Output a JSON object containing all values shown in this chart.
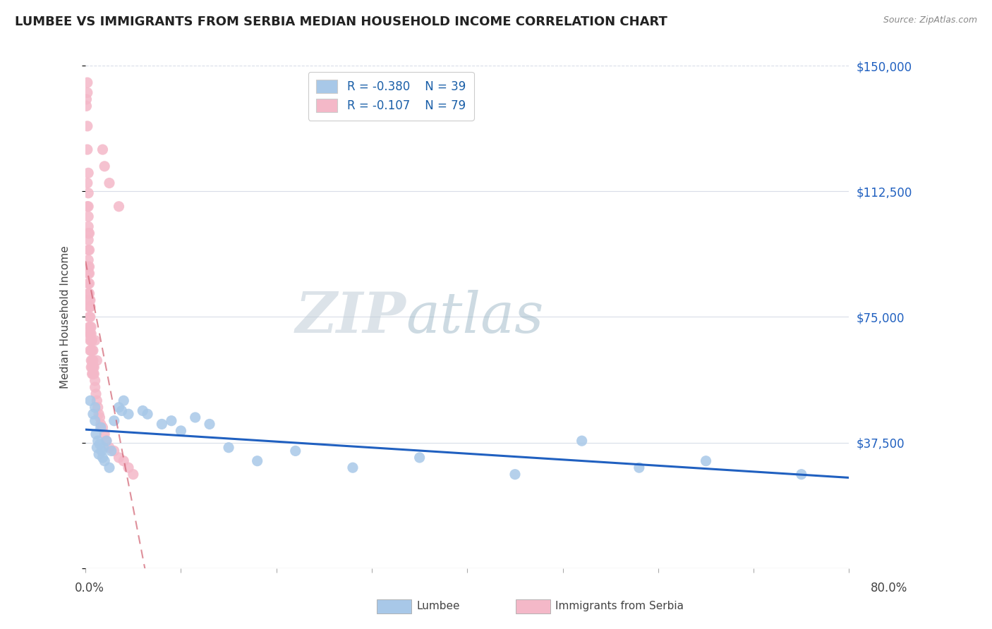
{
  "title": "LUMBEE VS IMMIGRANTS FROM SERBIA MEDIAN HOUSEHOLD INCOME CORRELATION CHART",
  "source_text": "Source: ZipAtlas.com",
  "ylabel": "Median Household Income",
  "xlim": [
    0,
    0.8
  ],
  "ylim": [
    0,
    150000
  ],
  "yticks": [
    0,
    37500,
    75000,
    112500,
    150000
  ],
  "ytick_labels_right": [
    "",
    "$37,500",
    "$75,000",
    "$112,500",
    "$150,000"
  ],
  "xticks": [
    0.0,
    0.1,
    0.2,
    0.3,
    0.4,
    0.5,
    0.6,
    0.7,
    0.8
  ],
  "xtick_labels": [
    "0.0%",
    "",
    "",
    "",
    "",
    "",
    "",
    "",
    "80.0%"
  ],
  "legend_labels": [
    "Lumbee",
    "Immigrants from Serbia"
  ],
  "legend_R": [
    "-0.380",
    "-0.107"
  ],
  "legend_N": [
    "39",
    "79"
  ],
  "watermark_zip": "ZIP",
  "watermark_atlas": "atlas",
  "blue_scatter_color": "#a8c8e8",
  "pink_scatter_color": "#f4b8c8",
  "blue_line_color": "#2060c0",
  "pink_line_color": "#d06070",
  "background_color": "#ffffff",
  "grid_color": "#d8dde8",
  "lumbee_x": [
    0.005,
    0.008,
    0.01,
    0.01,
    0.011,
    0.012,
    0.013,
    0.014,
    0.015,
    0.016,
    0.017,
    0.018,
    0.019,
    0.02,
    0.022,
    0.025,
    0.027,
    0.03,
    0.035,
    0.038,
    0.04,
    0.045,
    0.06,
    0.065,
    0.08,
    0.09,
    0.1,
    0.115,
    0.13,
    0.15,
    0.18,
    0.22,
    0.28,
    0.35,
    0.45,
    0.52,
    0.58,
    0.65,
    0.75
  ],
  "lumbee_y": [
    50000,
    46000,
    48000,
    44000,
    40000,
    36000,
    38000,
    34000,
    37000,
    42000,
    35000,
    33000,
    36000,
    32000,
    38000,
    30000,
    35000,
    44000,
    48000,
    47000,
    50000,
    46000,
    47000,
    46000,
    43000,
    44000,
    41000,
    45000,
    43000,
    36000,
    32000,
    35000,
    30000,
    33000,
    28000,
    38000,
    30000,
    32000,
    28000
  ],
  "serbia_x": [
    0.001,
    0.001,
    0.002,
    0.002,
    0.002,
    0.002,
    0.002,
    0.002,
    0.003,
    0.003,
    0.003,
    0.003,
    0.003,
    0.003,
    0.003,
    0.003,
    0.003,
    0.003,
    0.003,
    0.003,
    0.003,
    0.004,
    0.004,
    0.004,
    0.004,
    0.004,
    0.004,
    0.004,
    0.004,
    0.004,
    0.004,
    0.004,
    0.005,
    0.005,
    0.005,
    0.005,
    0.005,
    0.005,
    0.005,
    0.006,
    0.006,
    0.006,
    0.006,
    0.006,
    0.006,
    0.007,
    0.007,
    0.007,
    0.007,
    0.007,
    0.008,
    0.008,
    0.008,
    0.008,
    0.009,
    0.009,
    0.01,
    0.01,
    0.011,
    0.012,
    0.013,
    0.014,
    0.015,
    0.016,
    0.018,
    0.02,
    0.022,
    0.025,
    0.03,
    0.035,
    0.04,
    0.045,
    0.05,
    0.018,
    0.02,
    0.025,
    0.035,
    0.01,
    0.012
  ],
  "serbia_y": [
    140000,
    138000,
    145000,
    142000,
    132000,
    125000,
    115000,
    108000,
    118000,
    112000,
    108000,
    105000,
    102000,
    100000,
    98000,
    95000,
    92000,
    90000,
    88000,
    85000,
    82000,
    100000,
    95000,
    90000,
    88000,
    85000,
    82000,
    80000,
    78000,
    75000,
    72000,
    70000,
    80000,
    78000,
    75000,
    72000,
    70000,
    68000,
    65000,
    72000,
    70000,
    68000,
    65000,
    62000,
    60000,
    68000,
    65000,
    62000,
    60000,
    58000,
    65000,
    62000,
    60000,
    58000,
    60000,
    58000,
    56000,
    54000,
    52000,
    50000,
    48000,
    46000,
    45000,
    43000,
    42000,
    40000,
    38000,
    36000,
    35000,
    33000,
    32000,
    30000,
    28000,
    125000,
    120000,
    115000,
    108000,
    68000,
    62000
  ]
}
